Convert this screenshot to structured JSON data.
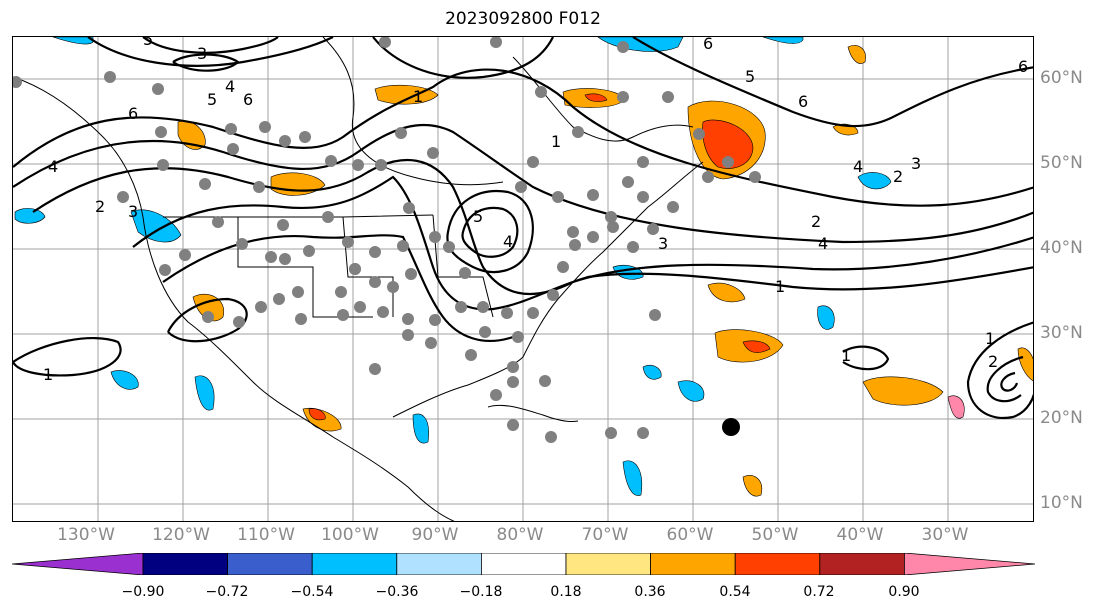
{
  "title": "2023092800 F012",
  "lon_labels": [
    "130°W",
    "120°W",
    "110°W",
    "100°W",
    "90°W",
    "80°W",
    "70°W",
    "60°W",
    "50°W",
    "40°W",
    "30°W"
  ],
  "lat_labels": [
    "60°N",
    "50°N",
    "40°N",
    "30°N",
    "20°N",
    "10°N"
  ],
  "contour_labels": [
    "1",
    "2",
    "3",
    "4",
    "5",
    "6"
  ],
  "colorbar": {
    "ticks": [
      "−0.90",
      "−0.72",
      "−0.54",
      "−0.36",
      "−0.18",
      "0.18",
      "0.36",
      "0.54",
      "0.72",
      "0.90"
    ],
    "colors": [
      "#9b30d0",
      "#000080",
      "#3a5fcd",
      "#00bfff",
      "#b0e2ff",
      "#ffffff",
      "#ffe680",
      "#ffa500",
      "#ff4000",
      "#b22222",
      "#ff88aa"
    ]
  }
}
